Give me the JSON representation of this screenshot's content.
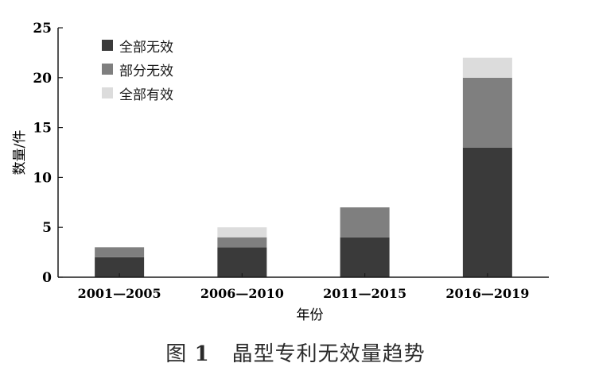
{
  "chart_data": {
    "type": "bar",
    "stacked": true,
    "categories": [
      "2001—2005",
      "2006—2010",
      "2011—2015",
      "2016—2019"
    ],
    "series": [
      {
        "name": "全部无效",
        "values": [
          2,
          3,
          4,
          13
        ],
        "color": "#3a3a3a"
      },
      {
        "name": "部分无效",
        "values": [
          1,
          1,
          3,
          7
        ],
        "color": "#7f7f7f"
      },
      {
        "name": "全部有效",
        "values": [
          0,
          1,
          0,
          2
        ],
        "color": "#dcdcdc"
      }
    ],
    "xlabel": "年份",
    "ylabel": "数量/件",
    "ylim": [
      0,
      25
    ],
    "yticks": [
      0,
      5,
      10,
      15,
      20,
      25
    ],
    "legend_position": "top-left",
    "grid": false
  },
  "caption": {
    "label": "图",
    "number": "1",
    "text": "晶型专利无效量趋势"
  }
}
